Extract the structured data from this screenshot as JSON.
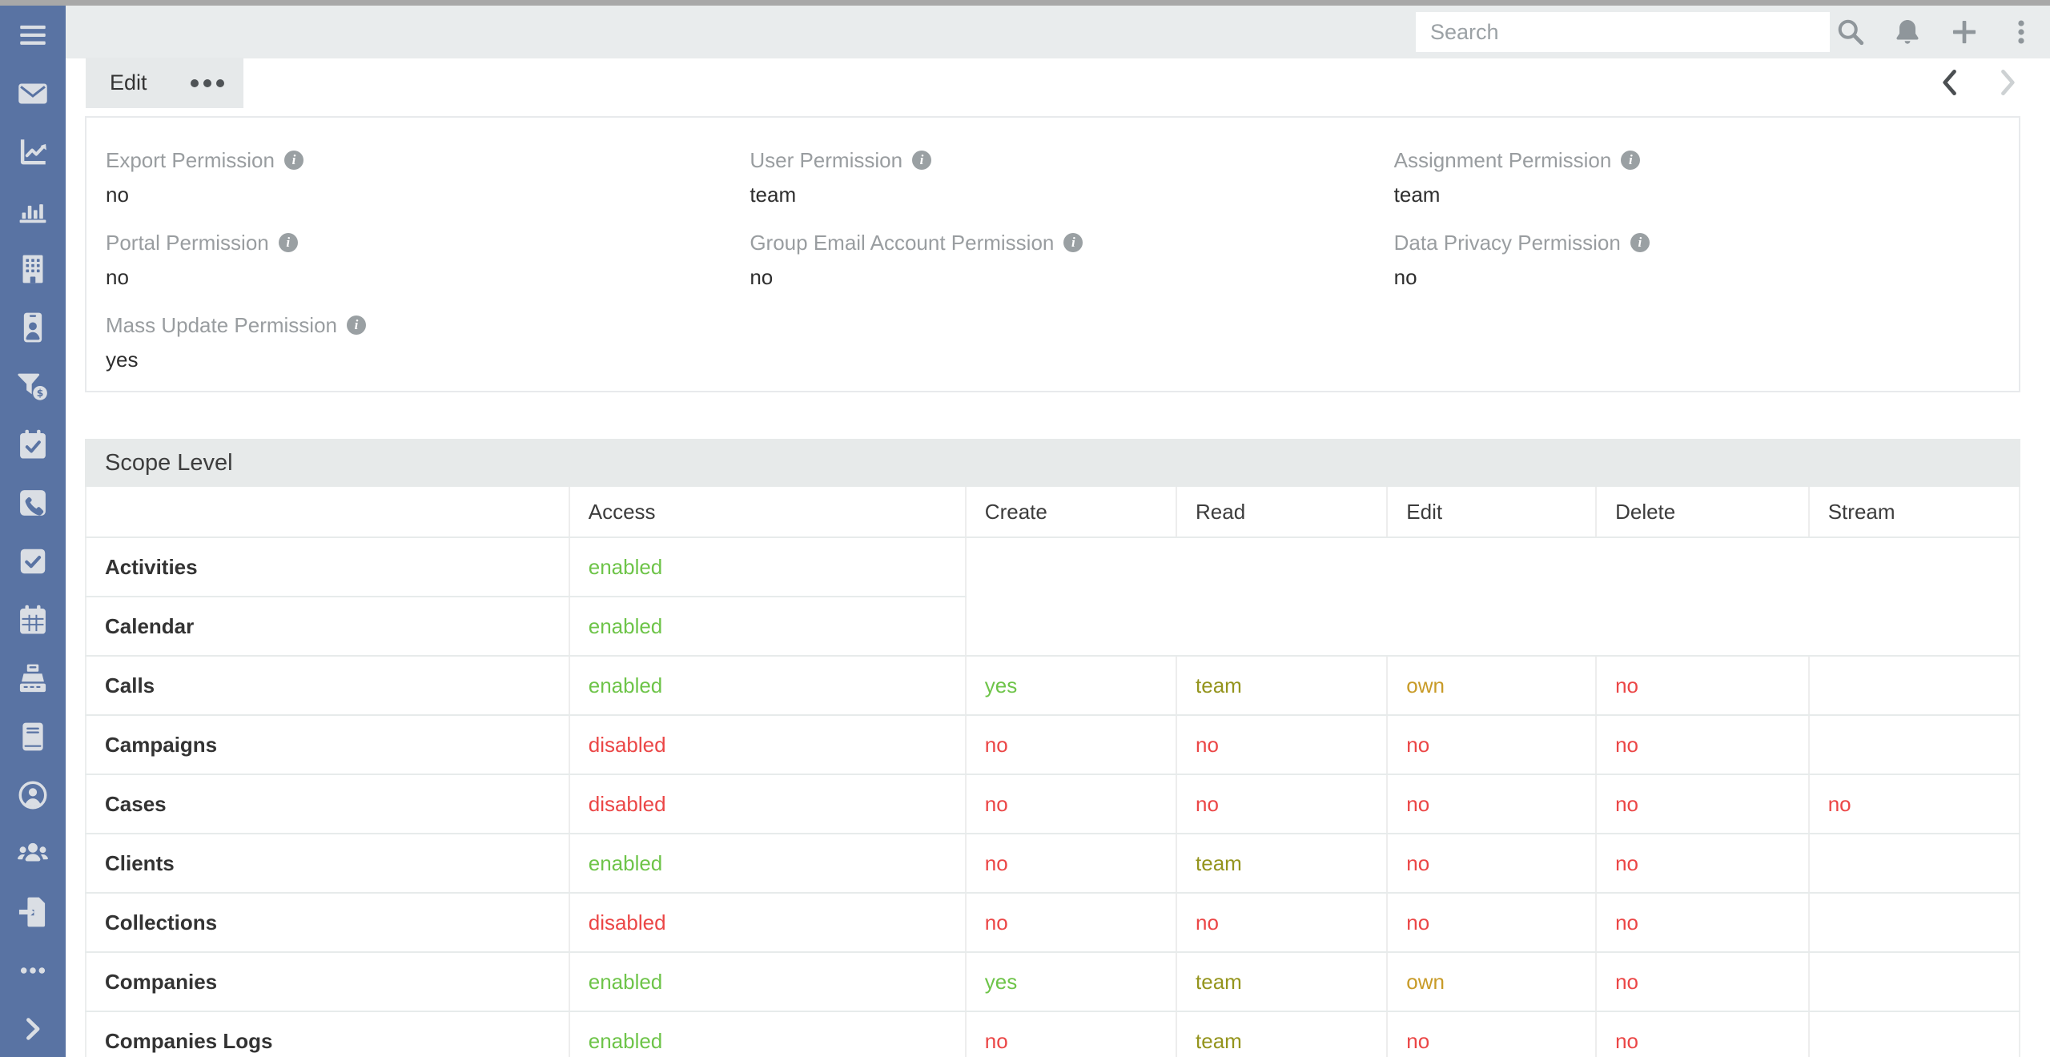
{
  "topbar": {
    "search_placeholder": "Search",
    "icons": [
      "search",
      "bell",
      "plus",
      "kebab"
    ]
  },
  "sidebar": {
    "icons": [
      "menu",
      "envelope",
      "chart-line",
      "chart-bar",
      "building",
      "id-badge",
      "funnel-dollar",
      "calendar-check",
      "phone-square",
      "check-square",
      "calendar",
      "cash-register",
      "book",
      "user-circle",
      "users",
      "file-import",
      "ellipsis",
      "chevron-right"
    ]
  },
  "actions": {
    "edit_label": "Edit"
  },
  "record_panel": {
    "fields": [
      {
        "label": "Export Permission",
        "value": "no"
      },
      {
        "label": "User Permission",
        "value": "team"
      },
      {
        "label": "Assignment Permission",
        "value": "team"
      },
      {
        "label": "Portal Permission",
        "value": "no"
      },
      {
        "label": "Group Email Account Permission",
        "value": "no"
      },
      {
        "label": "Data Privacy Permission",
        "value": "no"
      },
      {
        "label": "Mass Update Permission",
        "value": "yes"
      }
    ]
  },
  "scope_panel": {
    "title": "Scope Level",
    "columns": [
      "",
      "Access",
      "Create",
      "Read",
      "Edit",
      "Delete",
      "Stream"
    ],
    "rows": [
      {
        "name": "Activities",
        "access": "enabled",
        "cells": null
      },
      {
        "name": "Calendar",
        "access": "enabled",
        "cells": null
      },
      {
        "name": "Calls",
        "access": "enabled",
        "cells": [
          "yes",
          "team",
          "own",
          "no",
          ""
        ]
      },
      {
        "name": "Campaigns",
        "access": "disabled",
        "cells": [
          "no",
          "no",
          "no",
          "no",
          ""
        ]
      },
      {
        "name": "Cases",
        "access": "disabled",
        "cells": [
          "no",
          "no",
          "no",
          "no",
          "no"
        ]
      },
      {
        "name": "Clients",
        "access": "enabled",
        "cells": [
          "no",
          "team",
          "no",
          "no",
          ""
        ]
      },
      {
        "name": "Collections",
        "access": "disabled",
        "cells": [
          "no",
          "no",
          "no",
          "no",
          ""
        ]
      },
      {
        "name": "Companies",
        "access": "enabled",
        "cells": [
          "yes",
          "team",
          "own",
          "no",
          ""
        ]
      },
      {
        "name": "Companies Logs",
        "access": "enabled",
        "cells": [
          "no",
          "team",
          "no",
          "no",
          ""
        ]
      }
    ]
  },
  "value_colors": {
    "enabled": "green",
    "yes": "green",
    "disabled": "red",
    "no": "red",
    "team": "olive",
    "own": "amber"
  },
  "colors": {
    "sidebar": "#5973A3",
    "navbar_bg": "#e9eced",
    "panel_header_bg": "#e7eaea",
    "enabled_green": "#6ec449",
    "disabled_red": "#eb4646",
    "team_olive": "#94941d",
    "own_amber": "#c89b28"
  }
}
